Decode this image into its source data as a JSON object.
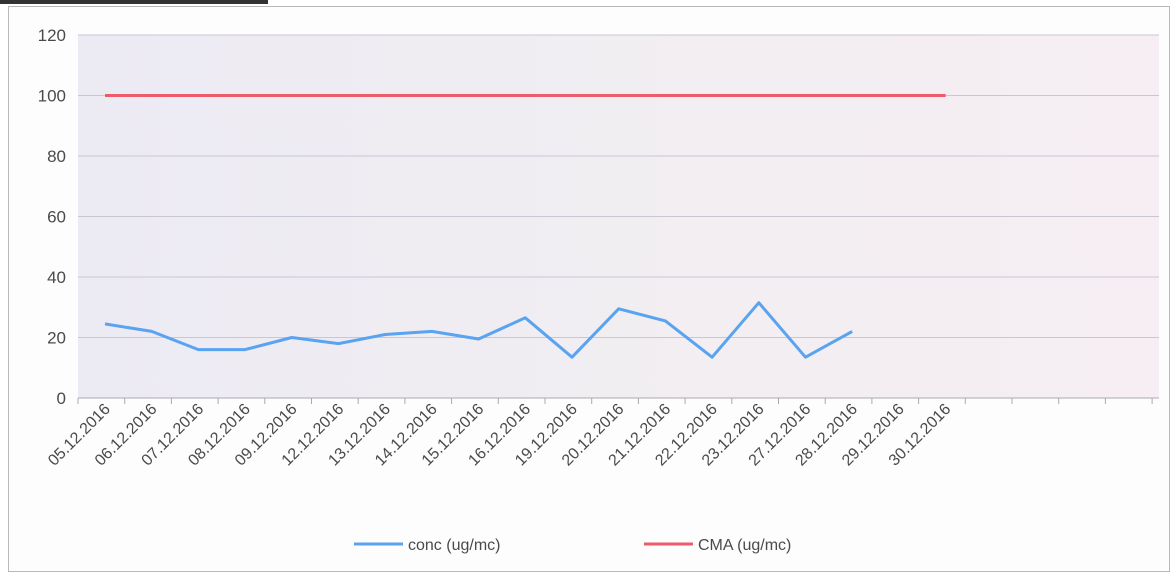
{
  "chart_data": {
    "type": "line",
    "categories": [
      "05.12.2016",
      "06.12.2016",
      "07.12.2016",
      "08.12.2016",
      "09.12.2016",
      "12.12.2016",
      "13.12.2016",
      "14.12.2016",
      "15.12.2016",
      "16.12.2016",
      "19.12.2016",
      "20.12.2016",
      "21.12.2016",
      "22.12.2016",
      "23.12.2016",
      "27.12.2016",
      "28.12.2016",
      "29.12.2016",
      "30.12.2016"
    ],
    "series": [
      {
        "name": "conc (ug/mc)",
        "color": "#5aa3f0",
        "values": [
          24.5,
          22,
          16,
          16,
          20,
          18,
          21,
          22,
          19.5,
          26.5,
          13.5,
          29.5,
          25.5,
          13.5,
          31.5,
          13.5,
          22,
          null,
          null
        ]
      },
      {
        "name": "CMA (ug/mc)",
        "color": "#ef5b6a",
        "values": [
          100,
          100,
          100,
          100,
          100,
          100,
          100,
          100,
          100,
          100,
          100,
          100,
          100,
          100,
          100,
          100,
          100,
          100,
          100
        ]
      }
    ],
    "ylim": [
      0,
      120
    ],
    "yticks": [
      0,
      20,
      40,
      60,
      80,
      100,
      120
    ],
    "grid": true,
    "legend": "bottom"
  }
}
